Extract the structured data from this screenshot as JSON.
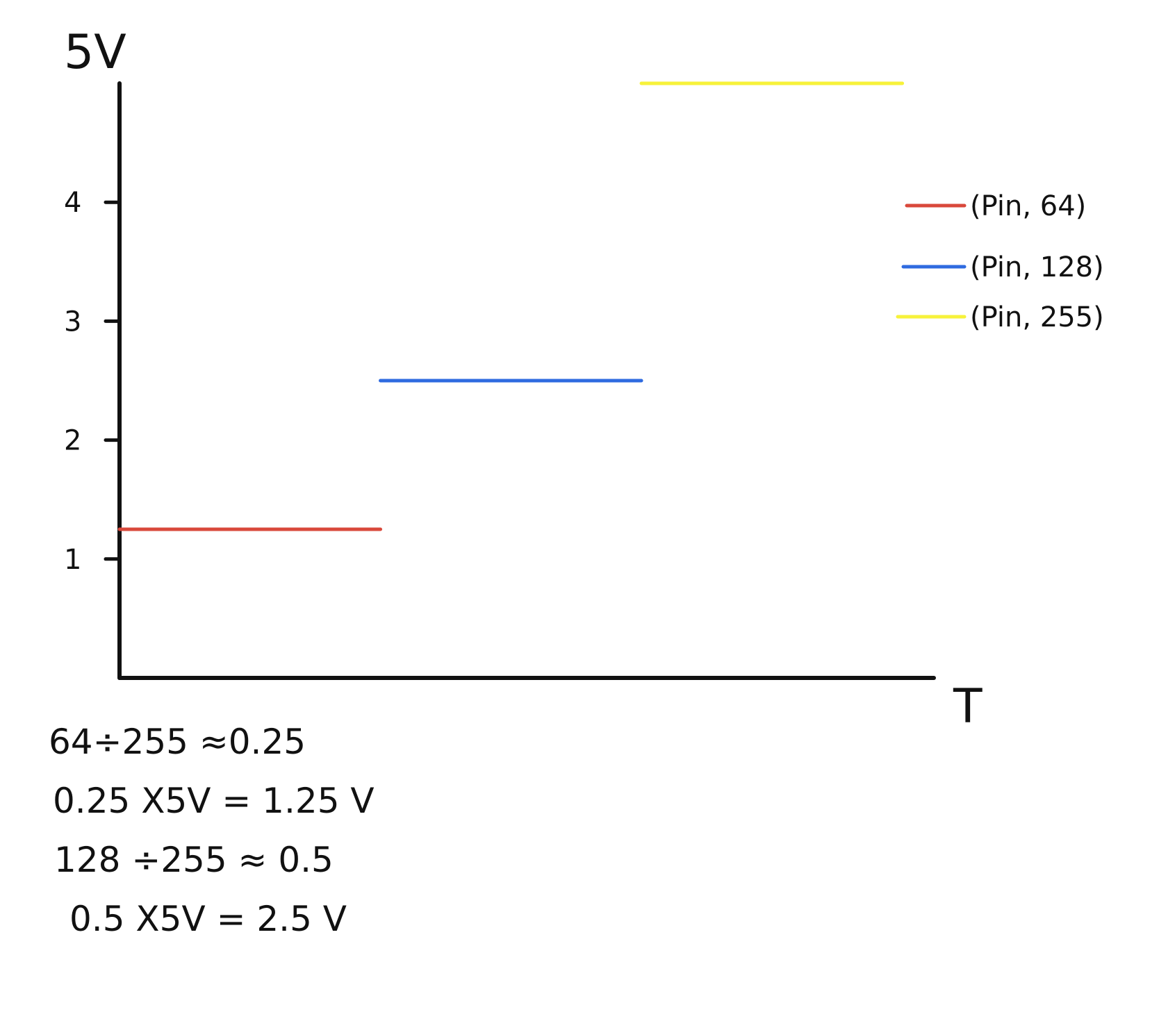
{
  "chart_data": {
    "type": "line",
    "title": "",
    "xlabel": "T",
    "ylabel": "5V",
    "yticks": [
      "1",
      "2",
      "3",
      "4"
    ],
    "ylim": [
      0,
      5
    ],
    "grid": false,
    "legend_position": "right",
    "series": [
      {
        "name": "(Pin, 64)",
        "color": "#d9483b",
        "x": [
          0,
          1
        ],
        "y": [
          1.25,
          1.25
        ]
      },
      {
        "name": "(Pin, 128)",
        "color": "#2f6be0",
        "x": [
          1,
          2
        ],
        "y": [
          2.5,
          2.5
        ]
      },
      {
        "name": "(Pin, 255)",
        "color": "#f7f23a",
        "x": [
          2,
          3
        ],
        "y": [
          5,
          5
        ]
      }
    ],
    "xlim": [
      0,
      3.35
    ]
  },
  "notes": [
    "64÷255 ≈0.25",
    "0.25 X5V = 1.25 V",
    "128 ÷255 ≈ 0.5",
    "0.5 X5V = 2.5 V"
  ]
}
